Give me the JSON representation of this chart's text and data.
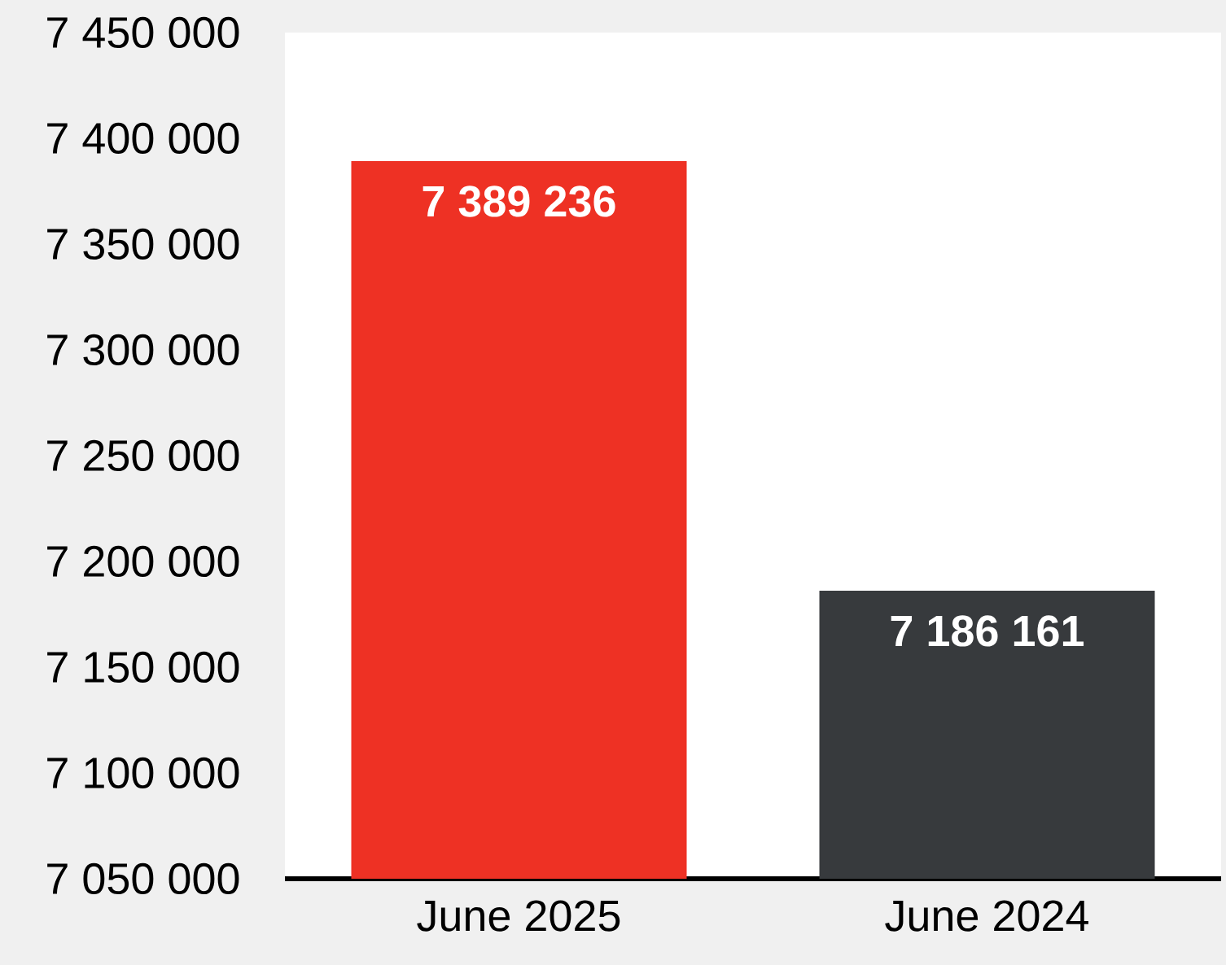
{
  "chart_data": {
    "type": "bar",
    "categories": [
      "June 2025",
      "June 2024"
    ],
    "values": [
      7389236,
      7186161
    ],
    "colors": [
      "#ee3124",
      "#373a3d"
    ],
    "value_labels": [
      "7 389 236",
      "7 186 161"
    ],
    "ylim": [
      7050000,
      7450000
    ],
    "yticks": [
      {
        "value": 7050000,
        "label": "7 050 000"
      },
      {
        "value": 7100000,
        "label": "7 100 000"
      },
      {
        "value": 7150000,
        "label": "7 150 000"
      },
      {
        "value": 7200000,
        "label": "7 200 000"
      },
      {
        "value": 7250000,
        "label": "7 250 000"
      },
      {
        "value": 7300000,
        "label": "7 300 000"
      },
      {
        "value": 7350000,
        "label": "7 350 000"
      },
      {
        "value": 7400000,
        "label": "7 400 000"
      },
      {
        "value": 7450000,
        "label": "7 450 000"
      }
    ]
  }
}
